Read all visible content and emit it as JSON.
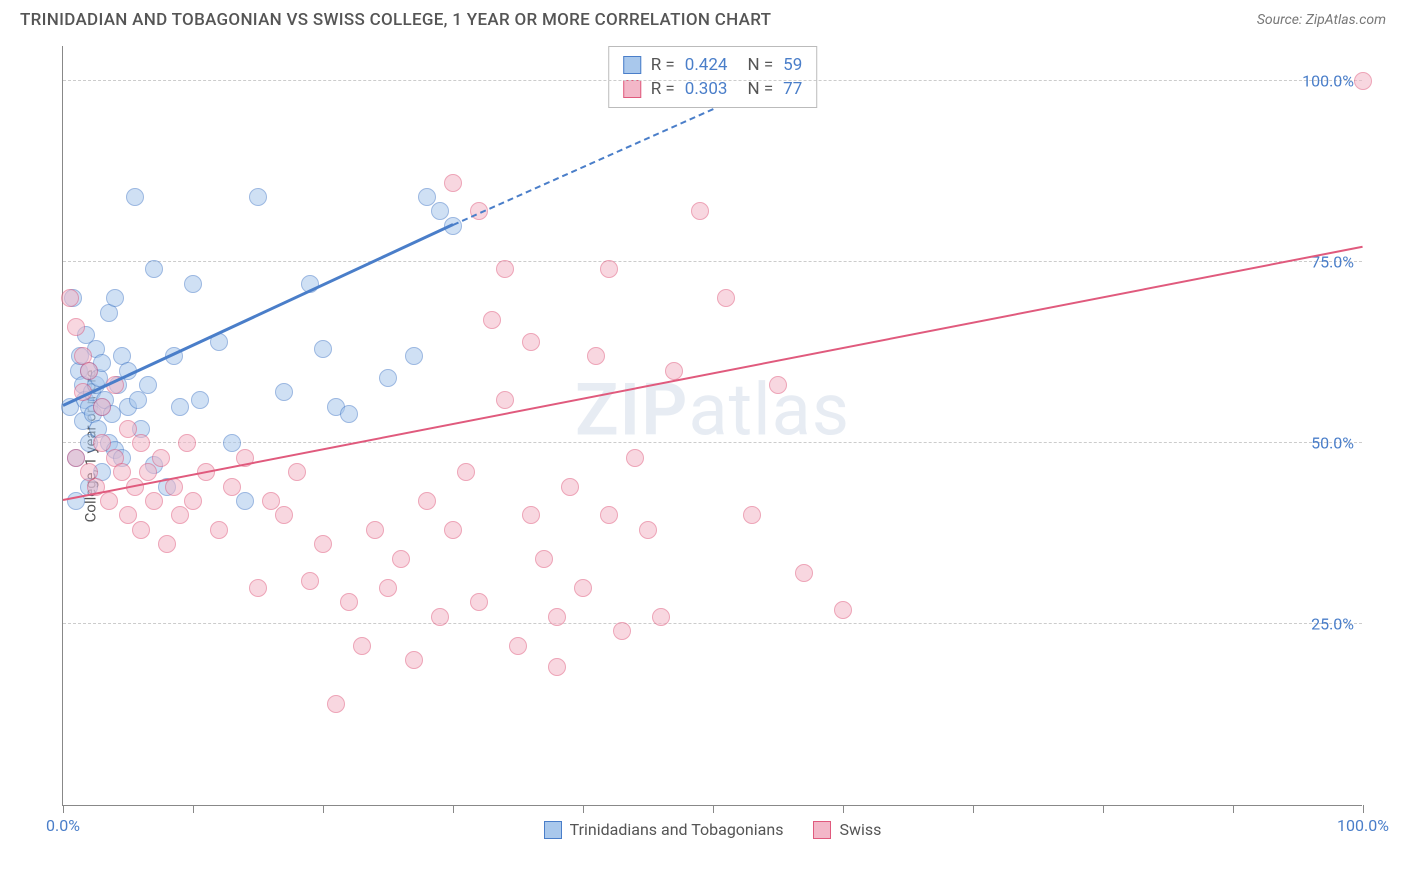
{
  "header": {
    "title": "TRINIDADIAN AND TOBAGONIAN VS SWISS COLLEGE, 1 YEAR OR MORE CORRELATION CHART",
    "source": "Source: ZipAtlas.com"
  },
  "chart": {
    "type": "scatter",
    "ylabel": "College, 1 year or more",
    "xlim": [
      0,
      100
    ],
    "ylim": [
      0,
      105
    ],
    "xtick_positions": [
      0,
      10,
      20,
      30,
      40,
      50,
      60,
      70,
      80,
      90,
      100
    ],
    "xtick_labels": {
      "0": "0.0%",
      "100": "100.0%"
    },
    "ytick_positions": [
      25,
      50,
      75,
      100
    ],
    "ytick_labels": {
      "25": "25.0%",
      "50": "50.0%",
      "75": "75.0%",
      "100": "100.0%"
    },
    "grid_color": "#cccccc",
    "background_color": "#ffffff",
    "axis_color": "#888888",
    "tick_label_color": "#4a7ec9",
    "label_fontsize": 15,
    "tick_fontsize": 16,
    "watermark": {
      "text_bold": "ZIP",
      "text_light": "atlas",
      "color": "rgba(120,150,190,0.18)",
      "fontsize": 72
    },
    "marker_radius": 9,
    "marker_opacity": 0.55,
    "series": [
      {
        "name": "Trinidadians and Tobagonians",
        "color_fill": "#a9c8ec",
        "color_stroke": "#4a7ec9",
        "r_value": "0.424",
        "n_value": "59",
        "trend": {
          "x1": 0,
          "y1": 55,
          "x2": 30,
          "y2": 80,
          "x2_dash": 50,
          "y2_dash": 96,
          "width": 3
        },
        "points": [
          [
            0.5,
            55
          ],
          [
            0.8,
            70
          ],
          [
            1,
            42
          ],
          [
            1,
            48
          ],
          [
            1.2,
            60
          ],
          [
            1.3,
            62
          ],
          [
            1.5,
            53
          ],
          [
            1.5,
            58
          ],
          [
            1.7,
            56
          ],
          [
            1.8,
            65
          ],
          [
            2,
            44
          ],
          [
            2,
            50
          ],
          [
            2,
            55
          ],
          [
            2,
            60
          ],
          [
            2.2,
            57
          ],
          [
            2.3,
            54
          ],
          [
            2.5,
            58
          ],
          [
            2.5,
            63
          ],
          [
            2.7,
            52
          ],
          [
            2.8,
            59
          ],
          [
            3,
            46
          ],
          [
            3,
            55
          ],
          [
            3,
            61
          ],
          [
            3.2,
            56
          ],
          [
            3.5,
            50
          ],
          [
            3.5,
            68
          ],
          [
            3.8,
            54
          ],
          [
            4,
            49
          ],
          [
            4,
            70
          ],
          [
            4.2,
            58
          ],
          [
            4.5,
            48
          ],
          [
            4.5,
            62
          ],
          [
            5,
            55
          ],
          [
            5,
            60
          ],
          [
            5.5,
            84
          ],
          [
            5.8,
            56
          ],
          [
            6,
            52
          ],
          [
            6.5,
            58
          ],
          [
            7,
            47
          ],
          [
            7,
            74
          ],
          [
            8,
            44
          ],
          [
            8.5,
            62
          ],
          [
            9,
            55
          ],
          [
            10,
            72
          ],
          [
            10.5,
            56
          ],
          [
            12,
            64
          ],
          [
            13,
            50
          ],
          [
            14,
            42
          ],
          [
            15,
            84
          ],
          [
            17,
            57
          ],
          [
            19,
            72
          ],
          [
            20,
            63
          ],
          [
            21,
            55
          ],
          [
            22,
            54
          ],
          [
            25,
            59
          ],
          [
            27,
            62
          ],
          [
            28,
            84
          ],
          [
            29,
            82
          ],
          [
            30,
            80
          ]
        ]
      },
      {
        "name": "Swiss",
        "color_fill": "#f3b7c8",
        "color_stroke": "#e05a7d",
        "r_value": "0.303",
        "n_value": "77",
        "trend": {
          "x1": 0,
          "y1": 42,
          "x2": 100,
          "y2": 77,
          "width": 2.5
        },
        "points": [
          [
            0.5,
            70
          ],
          [
            1,
            48
          ],
          [
            1,
            66
          ],
          [
            1.5,
            57
          ],
          [
            1.5,
            62
          ],
          [
            2,
            46
          ],
          [
            2,
            60
          ],
          [
            2.5,
            44
          ],
          [
            3,
            50
          ],
          [
            3,
            55
          ],
          [
            3.5,
            42
          ],
          [
            4,
            48
          ],
          [
            4,
            58
          ],
          [
            4.5,
            46
          ],
          [
            5,
            40
          ],
          [
            5,
            52
          ],
          [
            5.5,
            44
          ],
          [
            6,
            38
          ],
          [
            6,
            50
          ],
          [
            6.5,
            46
          ],
          [
            7,
            42
          ],
          [
            7.5,
            48
          ],
          [
            8,
            36
          ],
          [
            8.5,
            44
          ],
          [
            9,
            40
          ],
          [
            9.5,
            50
          ],
          [
            10,
            42
          ],
          [
            11,
            46
          ],
          [
            12,
            38
          ],
          [
            13,
            44
          ],
          [
            14,
            48
          ],
          [
            15,
            30
          ],
          [
            16,
            42
          ],
          [
            17,
            40
          ],
          [
            18,
            46
          ],
          [
            19,
            31
          ],
          [
            20,
            36
          ],
          [
            21,
            14
          ],
          [
            22,
            28
          ],
          [
            23,
            22
          ],
          [
            24,
            38
          ],
          [
            25,
            30
          ],
          [
            26,
            34
          ],
          [
            27,
            20
          ],
          [
            28,
            42
          ],
          [
            29,
            26
          ],
          [
            30,
            38
          ],
          [
            31,
            46
          ],
          [
            32,
            28
          ],
          [
            33,
            67
          ],
          [
            34,
            74
          ],
          [
            35,
            22
          ],
          [
            36,
            40
          ],
          [
            37,
            34
          ],
          [
            38,
            19
          ],
          [
            39,
            44
          ],
          [
            30,
            86
          ],
          [
            32,
            82
          ],
          [
            34,
            56
          ],
          [
            36,
            64
          ],
          [
            38,
            26
          ],
          [
            40,
            30
          ],
          [
            41,
            62
          ],
          [
            42,
            40
          ],
          [
            42,
            74
          ],
          [
            43,
            24
          ],
          [
            44,
            48
          ],
          [
            45,
            38
          ],
          [
            46,
            26
          ],
          [
            47,
            60
          ],
          [
            49,
            82
          ],
          [
            51,
            70
          ],
          [
            53,
            40
          ],
          [
            55,
            58
          ],
          [
            57,
            32
          ],
          [
            60,
            27
          ],
          [
            100,
            100
          ]
        ]
      }
    ],
    "legend_rn": {
      "rows": [
        {
          "swatch_fill": "#a9c8ec",
          "swatch_stroke": "#4a7ec9",
          "r": "0.424",
          "n": "59"
        },
        {
          "swatch_fill": "#f3b7c8",
          "swatch_stroke": "#e05a7d",
          "r": "0.303",
          "n": "77"
        }
      ]
    },
    "legend_bottom": [
      {
        "swatch_fill": "#a9c8ec",
        "swatch_stroke": "#4a7ec9",
        "label": "Trinidadians and Tobagonians"
      },
      {
        "swatch_fill": "#f3b7c8",
        "swatch_stroke": "#e05a7d",
        "label": "Swiss"
      }
    ]
  }
}
